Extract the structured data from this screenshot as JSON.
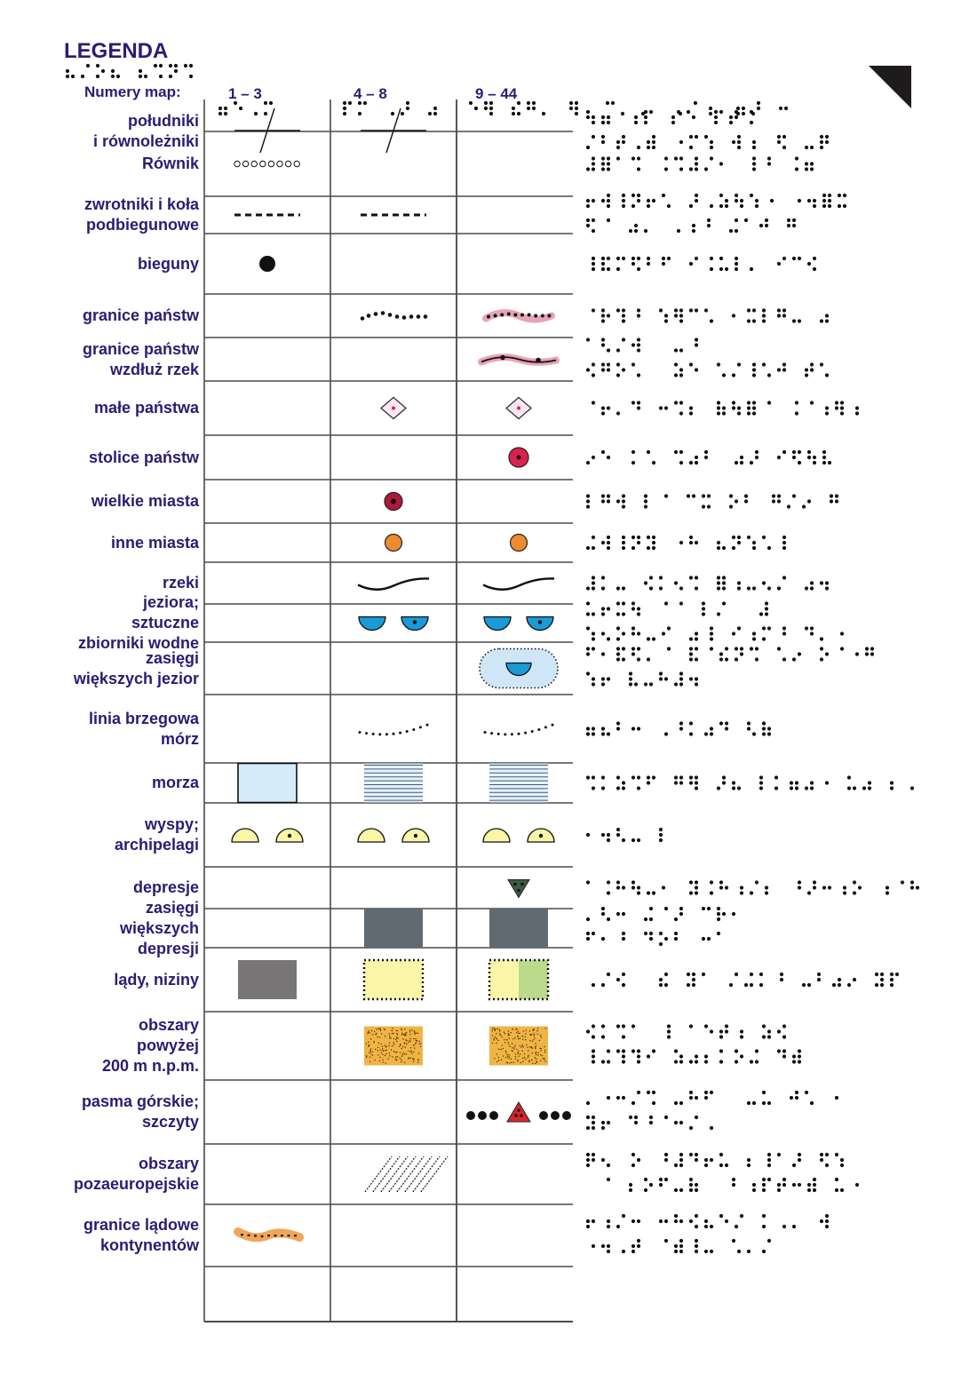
{
  "title": "LEGENDA",
  "header": {
    "label": "Numery map:",
    "columns": [
      "1 – 3",
      "4 – 8",
      "9 – 44"
    ]
  },
  "rows": [
    {
      "label": "południki\ni równoleżniki",
      "symbols": [
        "grid-cross",
        "grid-cross",
        ""
      ]
    },
    {
      "label": "Równik",
      "symbols": [
        "equator-circles",
        "",
        ""
      ]
    },
    {
      "label": "zwrotniki i koła\npodbiegunowe",
      "symbols": [
        "dashed-line",
        "dashed-line",
        ""
      ]
    },
    {
      "label": "bieguny",
      "symbols": [
        "pole-dot",
        "",
        ""
      ]
    },
    {
      "label": "granice państw",
      "symbols": [
        "",
        "dotted-border",
        "pink-dotted-border"
      ]
    },
    {
      "label": "granice państw\nwzdłuż rzek",
      "symbols": [
        "",
        "",
        "river-border"
      ]
    },
    {
      "label": "małe państwa",
      "symbols": [
        "",
        "diamond",
        "diamond"
      ]
    },
    {
      "label": "stolice państw",
      "symbols": [
        "",
        "",
        "capital-circle"
      ]
    },
    {
      "label": "wielkie miasta",
      "symbols": [
        "",
        "big-city-circle",
        ""
      ]
    },
    {
      "label": "inne miasta",
      "symbols": [
        "",
        "orange-dot",
        "orange-dot"
      ]
    },
    {
      "label": "rzeki",
      "symbols": [
        "",
        "river-wave",
        "river-wave"
      ]
    },
    {
      "label": "jeziora;\nsztuczne\nzbiorniki wodne",
      "symbols": [
        "",
        "lakes",
        "lakes"
      ]
    },
    {
      "label": "zasięgi\nwiększych jezior",
      "symbols": [
        "",
        "",
        "lake-extent"
      ]
    },
    {
      "label": "linia brzegowa\nmórz",
      "symbols": [
        "",
        "coastline",
        "coastline"
      ]
    },
    {
      "label": "morza",
      "symbols": [
        "sea-box",
        "sea-lines",
        "sea-lines"
      ]
    },
    {
      "label": "wyspy;\narchipelagi",
      "symbols": [
        "islands",
        "islands",
        "islands"
      ]
    },
    {
      "label": "depresje",
      "symbols": [
        "",
        "",
        "depression-triangle"
      ]
    },
    {
      "label": "zasięgi\nwiększych\ndepresji",
      "symbols": [
        "",
        "depression-box",
        "depression-box"
      ]
    },
    {
      "label": "lądy, niziny",
      "symbols": [
        "land-gray",
        "lowland-yellow",
        "lowland-yellow-green"
      ]
    },
    {
      "label": "obszary\npowyżej\n200 m n.p.m.",
      "symbols": [
        "",
        "highland-orange",
        "highland-orange"
      ]
    },
    {
      "label": "pasma górskie;\nszczyty",
      "symbols": [
        "",
        "",
        "mountain-range"
      ]
    },
    {
      "label": "obszary\npozaeuropejskie",
      "symbols": [
        "",
        "hatched",
        ""
      ]
    },
    {
      "label": "granice lądowe\nkontynentów",
      "symbols": [
        "continent-border",
        "",
        ""
      ]
    }
  ],
  "colors": {
    "label_text": "#2b1c73",
    "water_blue": "#1a9ad7",
    "sea_light": "#d5ecfb",
    "island_yellow": "#fbf6a7",
    "depression_gray": "#5f6a72",
    "land_gray": "#787576",
    "lowland_green": "#bcda8b",
    "highland_orange": "#f0b445",
    "capital_red": "#d9224f",
    "border_pink": "#e9a3b5",
    "city_orange": "#ee8b2f"
  }
}
